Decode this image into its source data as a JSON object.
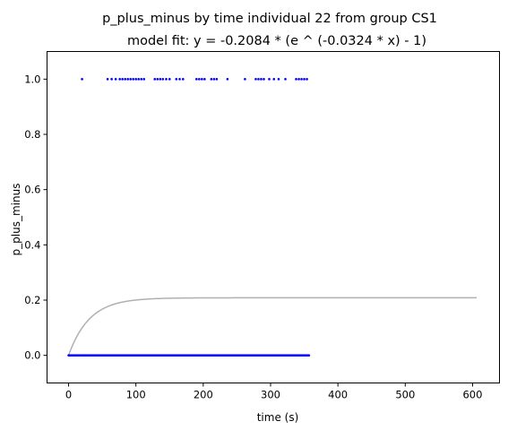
{
  "chart_data": {
    "type": "scatter",
    "title": "p_plus_minus by time individual 22 from group CS1",
    "subtitle": "model fit: y = -0.2084 * (e ^ (-0.0324 * x) - 1)",
    "xlabel": "time (s)",
    "ylabel": "p_plus_minus",
    "xlim": [
      -32,
      640
    ],
    "ylim": [
      -0.1,
      1.1
    ],
    "xticks": [
      0,
      100,
      200,
      300,
      400,
      500,
      600
    ],
    "xtick_labels": [
      "0",
      "100",
      "200",
      "300",
      "400",
      "500",
      "600"
    ],
    "yticks": [
      0.0,
      0.2,
      0.4,
      0.6,
      0.8,
      1.0
    ],
    "ytick_labels": [
      "0.0",
      "0.2",
      "0.4",
      "0.6",
      "0.8",
      "1.0"
    ],
    "grid": false,
    "series": [
      {
        "kind": "scatter",
        "color": "#0000ff",
        "points_y1_x": [
          20,
          58,
          64,
          70,
          76,
          80,
          84,
          88,
          92,
          96,
          100,
          104,
          108,
          112,
          128,
          132,
          136,
          140,
          145,
          150,
          160,
          165,
          170,
          190,
          194,
          198,
          202,
          212,
          216,
          220,
          236,
          262,
          278,
          282,
          286,
          290,
          298,
          305,
          312,
          322,
          338,
          342,
          346,
          350,
          354
        ],
        "points_y0_x_range": [
          0,
          358
        ],
        "points_y0_step": 1.5
      },
      {
        "kind": "line",
        "color": "#b0b0b0",
        "model": {
          "a": -0.2084,
          "b": -0.0324
        },
        "x_range": [
          0,
          607
        ]
      }
    ]
  }
}
